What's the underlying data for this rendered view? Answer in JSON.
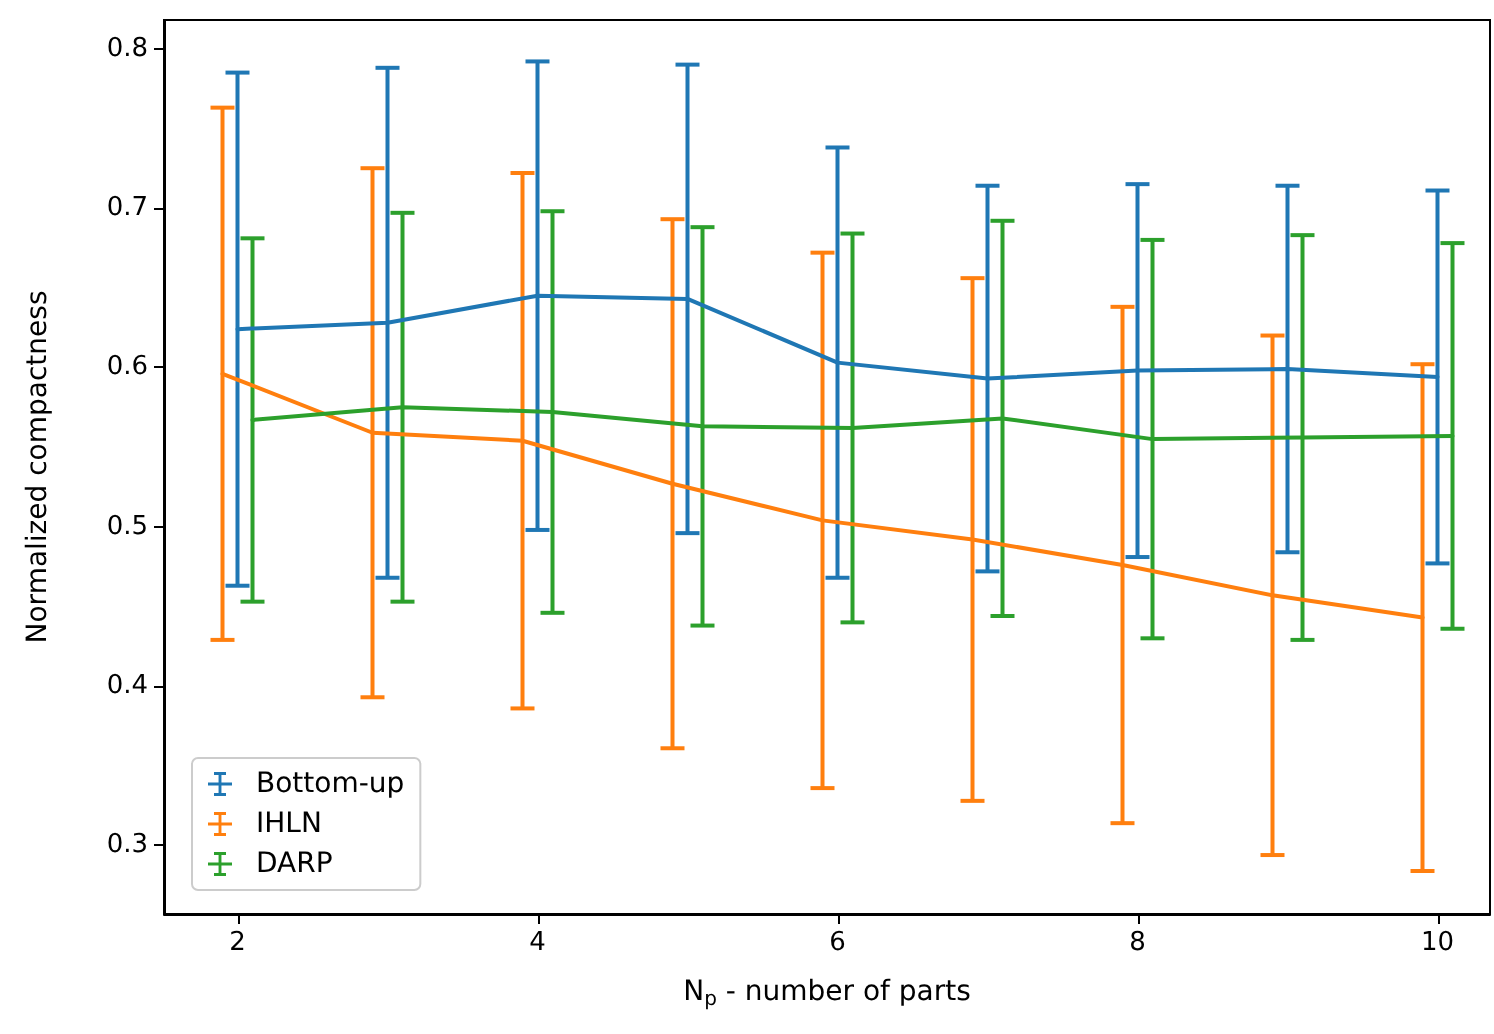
{
  "chart_data": {
    "type": "line",
    "xlabel": "N$_{p}$ - number of parts",
    "ylabel": "Normalized compactness",
    "xlim": [
      1.51,
      10.35
    ],
    "xticks": [
      2,
      4,
      6,
      8,
      10
    ],
    "ylim": [
      0.257,
      0.818
    ],
    "yticks": [
      0.3,
      0.4,
      0.5,
      0.6,
      0.7,
      0.8
    ],
    "grid": false,
    "legend": "bottom left",
    "marker": "none",
    "line_style": "solid",
    "series": [
      {
        "name": "Bottom-up",
        "color": "#1f77b4",
        "x": [
          2,
          3,
          4,
          5,
          6,
          7,
          8,
          9,
          10
        ],
        "values": [
          0.624,
          0.628,
          0.645,
          0.643,
          0.603,
          0.593,
          0.598,
          0.599,
          0.594
        ],
        "errors": [
          0.161,
          0.16,
          0.147,
          0.147,
          0.135,
          0.121,
          0.117,
          0.115,
          0.117
        ]
      },
      {
        "name": "IHLN",
        "color": "#ff7f0e",
        "x": [
          1.9,
          2.9,
          3.9,
          4.9,
          5.9,
          6.9,
          7.9,
          8.9,
          9.9
        ],
        "values": [
          0.596,
          0.559,
          0.554,
          0.527,
          0.504,
          0.492,
          0.476,
          0.457,
          0.443
        ],
        "errors": [
          0.167,
          0.166,
          0.168,
          0.166,
          0.168,
          0.164,
          0.162,
          0.163,
          0.159
        ]
      },
      {
        "name": "DARP",
        "color": "#2ca02c",
        "x": [
          2.1,
          3.1,
          4.1,
          5.1,
          6.1,
          7.1,
          8.1,
          9.1,
          10.1
        ],
        "values": [
          0.567,
          0.575,
          0.572,
          0.563,
          0.562,
          0.568,
          0.555,
          0.556,
          0.557
        ],
        "errors": [
          0.114,
          0.122,
          0.126,
          0.125,
          0.122,
          0.124,
          0.125,
          0.127,
          0.121
        ]
      }
    ]
  }
}
